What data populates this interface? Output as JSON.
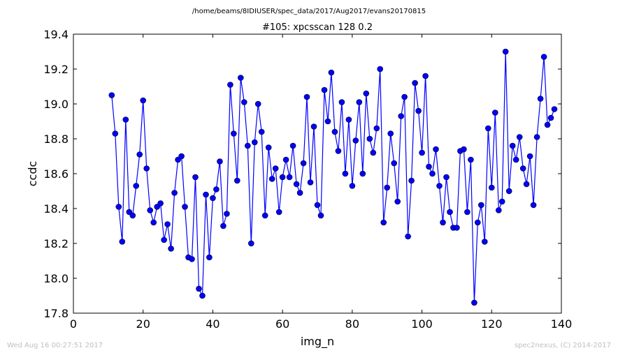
{
  "header": {
    "path": "/home/beams/8IDIUSER/spec_data/2017/Aug2017/evans20170815",
    "scan_title": "#105: xpcsscan 128 0.2"
  },
  "footer": {
    "timestamp": "Wed Aug 16 00:27:51 2017",
    "credit": "spec2nexus, (C) 2014-2017"
  },
  "chart_data": {
    "type": "line",
    "title": "#105: xpcsscan 128 0.2",
    "xlabel": "img_n",
    "ylabel": "ccdc",
    "xlim": [
      0,
      140
    ],
    "ylim": [
      17.8,
      19.4
    ],
    "xticks": [
      "0",
      "20",
      "40",
      "60",
      "80",
      "100",
      "120",
      "140"
    ],
    "yticks": [
      "17.8",
      "18.0",
      "18.2",
      "18.4",
      "18.6",
      "18.8",
      "19.0",
      "19.2",
      "19.4"
    ],
    "grid": false,
    "color": "#0000ff",
    "marker": "circle",
    "x": [
      11,
      12,
      13,
      14,
      15,
      16,
      17,
      18,
      19,
      20,
      21,
      22,
      23,
      24,
      25,
      26,
      27,
      28,
      29,
      30,
      31,
      32,
      33,
      34,
      35,
      36,
      37,
      38,
      39,
      40,
      41,
      42,
      43,
      44,
      45,
      46,
      47,
      48,
      49,
      50,
      51,
      52,
      53,
      54,
      55,
      56,
      57,
      58,
      59,
      60,
      61,
      62,
      63,
      64,
      65,
      66,
      67,
      68,
      69,
      70,
      71,
      72,
      73,
      74,
      75,
      76,
      77,
      78,
      79,
      80,
      81,
      82,
      83,
      84,
      85,
      86,
      87,
      88,
      89,
      90,
      91,
      92,
      93,
      94,
      95,
      96,
      97,
      98,
      99,
      100,
      101,
      102,
      103,
      104,
      105,
      106,
      107,
      108,
      109,
      110,
      111,
      112,
      113,
      114,
      115,
      116,
      117,
      118,
      119,
      120,
      121,
      122,
      123,
      124,
      125,
      126,
      127,
      128,
      129,
      130,
      131,
      132,
      133,
      134,
      135,
      136,
      137,
      138
    ],
    "y": [
      19.05,
      18.83,
      18.41,
      18.21,
      18.91,
      18.38,
      18.36,
      18.53,
      18.71,
      19.02,
      18.63,
      18.39,
      18.32,
      18.41,
      18.43,
      18.22,
      18.31,
      18.17,
      18.49,
      18.68,
      18.7,
      18.41,
      18.12,
      18.11,
      18.58,
      17.94,
      17.9,
      18.48,
      18.12,
      18.46,
      18.51,
      18.67,
      18.3,
      18.37,
      19.11,
      18.83,
      18.56,
      19.15,
      19.01,
      18.76,
      18.2,
      18.78,
      19.0,
      18.84,
      18.36,
      18.75,
      18.57,
      18.63,
      18.38,
      18.58,
      18.68,
      18.58,
      18.76,
      18.54,
      18.49,
      18.66,
      19.04,
      18.55,
      18.87,
      18.42,
      18.36,
      19.08,
      18.9,
      19.18,
      18.84,
      18.73,
      19.01,
      18.6,
      18.91,
      18.53,
      18.79,
      19.01,
      18.6,
      19.06,
      18.8,
      18.72,
      18.86,
      19.2,
      18.32,
      18.52,
      18.83,
      18.66,
      18.44,
      18.93,
      19.04,
      18.24,
      18.56,
      19.12,
      18.96,
      18.72,
      19.16,
      18.64,
      18.6,
      18.74,
      18.53,
      18.32,
      18.58,
      18.38,
      18.29,
      18.29,
      18.73,
      18.74,
      18.38,
      18.68,
      17.86,
      18.32,
      18.42,
      18.21,
      18.86,
      18.52,
      18.95,
      18.39,
      18.44,
      19.3,
      18.5,
      18.76,
      18.68,
      18.81,
      18.63,
      18.54,
      18.7,
      18.42,
      18.81,
      19.03,
      19.27,
      18.88,
      18.92,
      18.97
    ]
  }
}
